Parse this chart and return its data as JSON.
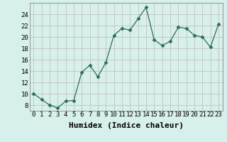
{
  "x": [
    0,
    1,
    2,
    3,
    4,
    5,
    6,
    7,
    8,
    9,
    10,
    11,
    12,
    13,
    14,
    15,
    16,
    17,
    18,
    19,
    20,
    21,
    22,
    23
  ],
  "y": [
    10.0,
    9.0,
    8.0,
    7.5,
    8.7,
    8.8,
    13.8,
    15.0,
    13.0,
    15.5,
    20.3,
    21.5,
    21.2,
    23.2,
    25.2,
    19.5,
    18.5,
    19.2,
    21.7,
    21.5,
    20.3,
    20.0,
    18.2,
    22.2
  ],
  "line_color": "#2d6b5e",
  "marker": "D",
  "marker_size": 2.5,
  "background_color": "#d7f0eb",
  "grid_color": "#c0b8b8",
  "xlabel": "Humidex (Indice chaleur)",
  "ylim": [
    7,
    26
  ],
  "xlim": [
    -0.5,
    23.5
  ],
  "yticks": [
    8,
    10,
    12,
    14,
    16,
    18,
    20,
    22,
    24
  ],
  "xticks": [
    0,
    1,
    2,
    3,
    4,
    5,
    6,
    7,
    8,
    9,
    10,
    11,
    12,
    13,
    14,
    15,
    16,
    17,
    18,
    19,
    20,
    21,
    22,
    23
  ],
  "xlabel_fontsize": 8,
  "tick_fontsize": 6.5
}
